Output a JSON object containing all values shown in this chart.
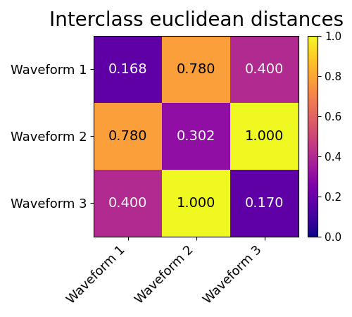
{
  "title": "Interclass euclidean distances",
  "matrix": [
    [
      0.168,
      0.78,
      0.4
    ],
    [
      0.78,
      0.302,
      1.0
    ],
    [
      0.4,
      1.0,
      0.17
    ]
  ],
  "labels": [
    "Waveform 1",
    "Waveform 2",
    "Waveform 3"
  ],
  "cmap": "plasma",
  "vmin": 0.0,
  "vmax": 1.0,
  "title_fontsize": 20,
  "label_fontsize": 13,
  "annot_fontsize": 14,
  "cbar_tick_fontsize": 11
}
